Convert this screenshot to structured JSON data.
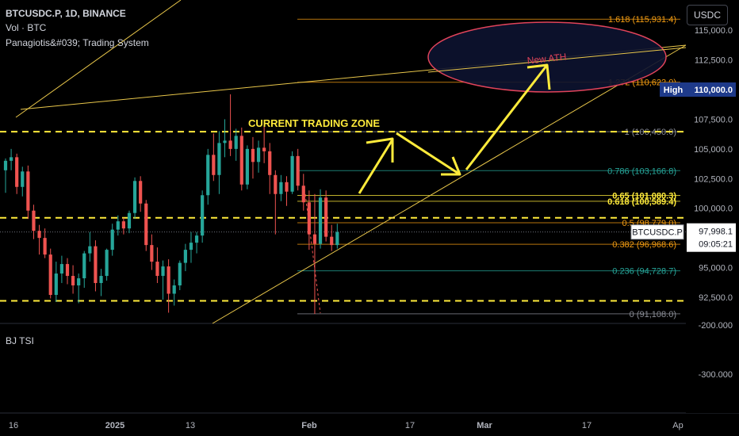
{
  "header": {
    "symbol_line": "BTCUSDC.P, 1D, BINANCE",
    "volume_line": "Vol · BTC",
    "indicator_line": "Panagiotis&#039; Trading System",
    "tsi_label": "BJ TSI",
    "currency_button": "USDC"
  },
  "colors": {
    "background": "#000000",
    "bull": "#26a69a",
    "bear": "#ef5350",
    "trend": "#e8c64a",
    "zone": "#ffeb3b",
    "fib_gray": "#8a8d96",
    "fib_orange": "#f39c12",
    "fib_teal": "#26a69a",
    "fib_yellow": "#ffeb3b",
    "ellipse_stroke": "#e0435a",
    "ellipse_fill": "#0d1330",
    "ath_text": "#e0435a",
    "price_tag_bg": "#ffffff",
    "high_tag_bg": "#1e3a8a"
  },
  "chart_data": {
    "type": "candlestick",
    "x_ticks": [
      "16",
      "2025",
      "13",
      "Feb",
      "17",
      "Mar",
      "17",
      "Ap"
    ],
    "y_ticks": [
      "115,000.0",
      "112,500.0",
      "107,500.0",
      "105,000.0",
      "102,500.0",
      "100,000.0",
      "95,000.0",
      "92,500.0"
    ],
    "oscillator_ticks": [
      "-200.000",
      "-300.000"
    ],
    "fib_levels": [
      {
        "label": "1.618 (115,931.4)",
        "price": 115931.4,
        "style": "orange"
      },
      {
        "label": "1.272 (110,622.0)",
        "price": 110622.0,
        "style": "orange"
      },
      {
        "label": "1 (106,450.0)",
        "price": 106450.0,
        "style": "gray"
      },
      {
        "label": "0.786 (103,166.8)",
        "price": 103166.8,
        "style": "teal"
      },
      {
        "label": "0.65 (101,080.3)",
        "price": 101080.3,
        "style": "yellow"
      },
      {
        "label": "0.618 (100,589.4)",
        "price": 100589.4,
        "style": "yellow"
      },
      {
        "label": "0.5 (98,779.0)",
        "price": 98779.0,
        "style": "orange"
      },
      {
        "label": "0.382 (96,968.6)",
        "price": 96968.6,
        "style": "orange"
      },
      {
        "label": "0.236 (94,728.7)",
        "price": 94728.7,
        "style": "teal"
      },
      {
        "label": "0 (91,108.0)",
        "price": 91108.0,
        "style": "gray"
      }
    ],
    "zone_lines": [
      106450,
      99200,
      92200
    ],
    "zone_label": "CURRENT TRADING ZONE",
    "ath_label": "New ATH",
    "high": {
      "label": "High",
      "value": "110,000.0",
      "price": 110000
    },
    "last": {
      "symbol": "BTCUSDC.P",
      "price": "97,998.1",
      "countdown": "09:05:21",
      "value": 97998.1
    },
    "candles": [
      [
        103200,
        104200,
        101300,
        104000
      ],
      [
        104000,
        105000,
        103200,
        104300
      ],
      [
        104300,
        104600,
        101200,
        101800
      ],
      [
        101800,
        103500,
        101000,
        103100
      ],
      [
        103100,
        103600,
        99100,
        99800
      ],
      [
        99800,
        100300,
        97400,
        98100
      ],
      [
        98100,
        98600,
        96100,
        97500
      ],
      [
        97500,
        98300,
        95800,
        96100
      ],
      [
        96100,
        96600,
        92400,
        92700
      ],
      [
        92700,
        95500,
        92100,
        94500
      ],
      [
        94500,
        96000,
        93700,
        95300
      ],
      [
        95300,
        95800,
        93600,
        94300
      ],
      [
        94300,
        95200,
        92800,
        93500
      ],
      [
        93500,
        94500,
        92000,
        94100
      ],
      [
        94100,
        96400,
        93300,
        96200
      ],
      [
        96200,
        98000,
        95500,
        96800
      ],
      [
        96800,
        97300,
        93000,
        93700
      ],
      [
        93700,
        94900,
        92600,
        94300
      ],
      [
        94300,
        96600,
        93900,
        96500
      ],
      [
        96500,
        98700,
        96000,
        98200
      ],
      [
        98200,
        99400,
        97700,
        98900
      ],
      [
        98900,
        99200,
        97800,
        98300
      ],
      [
        98300,
        99800,
        97900,
        99600
      ],
      [
        99600,
        102600,
        99100,
        102300
      ],
      [
        102300,
        102700,
        99700,
        100400
      ],
      [
        100400,
        100700,
        96400,
        96900
      ],
      [
        96900,
        97800,
        94800,
        95500
      ],
      [
        95500,
        96700,
        93700,
        94300
      ],
      [
        94300,
        95600,
        92300,
        95100
      ],
      [
        95100,
        95700,
        91200,
        92800
      ],
      [
        92800,
        94000,
        91800,
        93500
      ],
      [
        93500,
        95600,
        93100,
        95400
      ],
      [
        95400,
        97000,
        94700,
        96500
      ],
      [
        96500,
        98000,
        95400,
        97100
      ],
      [
        97100,
        98000,
        96200,
        97700
      ],
      [
        97700,
        101500,
        97100,
        101100
      ],
      [
        101100,
        105000,
        100300,
        104500
      ],
      [
        104500,
        106300,
        102300,
        102800
      ],
      [
        102800,
        106500,
        101200,
        105500
      ],
      [
        105500,
        107500,
        104300,
        105700
      ],
      [
        105700,
        109600,
        104400,
        105000
      ],
      [
        105000,
        106700,
        104000,
        106100
      ],
      [
        106100,
        106800,
        101500,
        102000
      ],
      [
        102000,
        105300,
        101600,
        105000
      ],
      [
        105000,
        106000,
        102500,
        103900
      ],
      [
        103900,
        105700,
        103000,
        105100
      ],
      [
        105100,
        107000,
        103800,
        104800
      ],
      [
        104800,
        105500,
        101200,
        102800
      ],
      [
        102800,
        103200,
        97800,
        101200
      ],
      [
        101200,
        102800,
        100600,
        102200
      ],
      [
        102200,
        102700,
        100200,
        101400
      ],
      [
        101400,
        104800,
        101200,
        104400
      ],
      [
        104400,
        105000,
        101500,
        101900
      ],
      [
        101900,
        102900,
        99800,
        100500
      ],
      [
        100500,
        101500,
        96500,
        97800
      ],
      [
        97800,
        101200,
        91100,
        97000
      ],
      [
        97000,
        101600,
        96600,
        100900
      ],
      [
        100900,
        101500,
        97200,
        97600
      ],
      [
        97600,
        98600,
        96400,
        96900
      ],
      [
        96900,
        98700,
        96600,
        97998
      ]
    ]
  }
}
